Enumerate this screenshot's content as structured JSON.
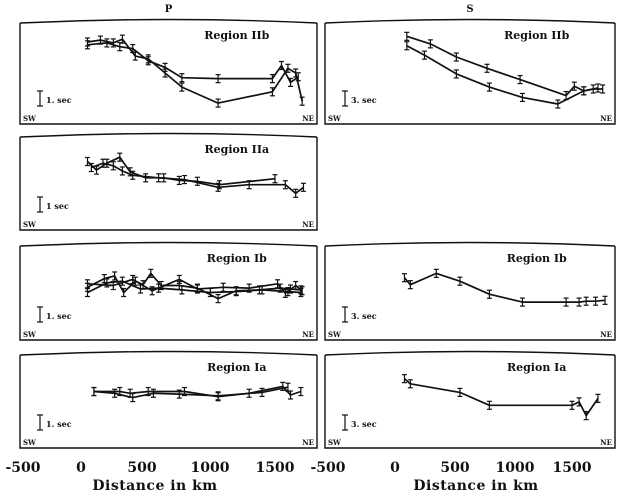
{
  "chart_data": {
    "type": "line",
    "columns": [
      {
        "title": "P",
        "xlabel": "Distance in km",
        "xlim": [
          -500,
          1850
        ],
        "xticks": [
          "-500",
          "0",
          "500",
          "1000",
          "1500"
        ],
        "panels": [
          {
            "region": "Region IIb",
            "scale_label": "1. sec",
            "left_label": "SW",
            "right_label": "NE",
            "ylim": [
              0,
              10
            ],
            "series": [
              {
                "x": [
                  50,
                  150,
                  250,
                  320,
                  420,
                  520,
                  650,
                  780,
                  1060,
                  1480,
                  1600,
                  1660,
                  1710
                ],
                "y": [
                  8.3,
                  8.5,
                  8.2,
                  8.6,
                  6.8,
                  6.5,
                  5.0,
                  3.5,
                  1.8,
                  3.0,
                  5.5,
                  5.0,
                  2.0
                ]
              },
              {
                "x": [
                  50,
                  200,
                  300,
                  400,
                  520,
                  650,
                  780,
                  1060,
                  1480,
                  1550,
                  1620,
                  1680
                ],
                "y": [
                  8.0,
                  8.2,
                  7.8,
                  7.6,
                  6.3,
                  5.6,
                  4.5,
                  4.4,
                  4.4,
                  5.8,
                  4.0,
                  4.6
                ]
              }
            ]
          },
          {
            "region": "Region IIa",
            "scale_label": "1 sec",
            "left_label": "SW",
            "right_label": "NE",
            "ylim": [
              0,
              10
            ],
            "series": [
              {
                "x": [
                  50,
                  120,
                  200,
                  300,
                  380,
                  500,
                  640,
                  760,
                  900,
                  1070,
                  1500
                ],
                "y": [
                  7.5,
                  6.5,
                  7.3,
                  8.0,
                  6.3,
                  5.6,
                  5.6,
                  5.3,
                  5.2,
                  4.8,
                  5.5
                ]
              },
              {
                "x": [
                  80,
                  170,
                  250,
                  320,
                  400,
                  600,
                  800,
                  1060,
                  1300,
                  1580,
                  1660,
                  1720
                ],
                "y": [
                  6.8,
                  7.3,
                  7.0,
                  6.4,
                  5.9,
                  5.6,
                  5.4,
                  4.5,
                  4.8,
                  4.8,
                  3.8,
                  4.5
                ]
              }
            ]
          },
          {
            "region": "Region Ib",
            "scale_label": "1. sec",
            "left_label": "SW",
            "right_label": "NE",
            "ylim": [
              0,
              10
            ],
            "series": [
              {
                "x": [
                  50,
                  180,
                  260,
                  330,
                  420,
                  480,
                  540,
                  620,
                  760,
                  900,
                  1060,
                  1200,
                  1380,
                  1540,
                  1620,
                  1700
                ],
                "y": [
                  5.6,
                  6.6,
                  6.9,
                  5.0,
                  6.3,
                  5.9,
                  7.2,
                  5.8,
                  5.8,
                  5.5,
                  4.3,
                  5.2,
                  5.3,
                  5.5,
                  5.4,
                  5.3
                ]
              },
              {
                "x": [
                  50,
                  200,
                  320,
                  460,
                  600,
                  780,
                  1000,
                  1200,
                  1400,
                  1600,
                  1700
                ],
                "y": [
                  5.0,
                  6.1,
                  6.3,
                  5.4,
                  5.5,
                  5.3,
                  5.0,
                  5.1,
                  5.3,
                  5.1,
                  5.0
                ]
              },
              {
                "x": [
                  50,
                  250,
                  400,
                  550,
                  760,
                  900,
                  1100,
                  1300,
                  1520,
                  1580,
                  1660,
                  1710
                ],
                "y": [
                  6.0,
                  5.8,
                  6.5,
                  5.2,
                  6.5,
                  5.4,
                  5.6,
                  5.5,
                  6.0,
                  4.9,
                  5.8,
                  5.2
                ]
              }
            ]
          },
          {
            "region": "Region Ia",
            "scale_label": "1. sec",
            "left_label": "SW",
            "right_label": "NE",
            "ylim": [
              0,
              10
            ],
            "series": [
              {
                "x": [
                  100,
                  300,
                  380,
                  520,
                  800,
                  1060,
                  1300,
                  1560,
                  1620,
                  1700
                ],
                "y": [
                  6.1,
                  6.1,
                  5.9,
                  6.1,
                  6.1,
                  5.5,
                  5.9,
                  6.7,
                  5.7,
                  6.1
                ]
              },
              {
                "x": [
                  100,
                  260,
                  400,
                  560,
                  760,
                  1060,
                  1400,
                  1600
                ],
                "y": [
                  6.1,
                  5.9,
                  5.4,
                  5.9,
                  5.8,
                  5.6,
                  6.0,
                  6.6
                ]
              }
            ]
          }
        ]
      },
      {
        "title": "S",
        "xlabel": "Distance in km",
        "xlim": [
          -500,
          1850
        ],
        "xticks": [
          "-500",
          "0",
          "500",
          "1000",
          "1500"
        ],
        "panels": [
          {
            "region": "Region IIb",
            "scale_label": "3. sec",
            "left_label": "SW",
            "right_label": "NE",
            "ylim": [
              0,
              10
            ],
            "series": [
              {
                "x": [
                  100,
                  300,
                  520,
                  780,
                  1060,
                  1450,
                  1520,
                  1600,
                  1720
                ],
                "y": [
                  8.9,
                  8.1,
                  6.7,
                  5.5,
                  4.3,
                  2.6,
                  3.6,
                  3.1,
                  3.4
                ]
              },
              {
                "x": [
                  100,
                  250,
                  520,
                  800,
                  1080,
                  1380,
                  1600,
                  1680,
                  1760
                ],
                "y": [
                  7.9,
                  6.9,
                  4.9,
                  3.5,
                  2.4,
                  1.7,
                  3.1,
                  3.3,
                  3.3
                ]
              }
            ]
          },
          {
            "region": "Region Ib",
            "scale_label": "3. sec",
            "left_label": "SW",
            "right_label": "NE",
            "ylim": [
              0,
              10
            ],
            "series": [
              {
                "x": [
                  80,
                  130,
                  350,
                  550,
                  800,
                  1080,
                  1450,
                  1560,
                  1620,
                  1700,
                  1780
                ],
                "y": [
                  6.7,
                  5.9,
                  7.2,
                  6.3,
                  4.8,
                  3.9,
                  3.9,
                  3.9,
                  4.0,
                  4.0,
                  4.1
                ]
              }
            ]
          },
          {
            "region": "Region Ia",
            "scale_label": "3. sec",
            "left_label": "SW",
            "right_label": "NE",
            "ylim": [
              0,
              10
            ],
            "series": [
              {
                "x": [
                  80,
                  130,
                  550,
                  800,
                  1500,
                  1560,
                  1620,
                  1720
                ],
                "y": [
                  7.6,
                  7.0,
                  6.0,
                  4.5,
                  4.5,
                  4.9,
                  3.3,
                  5.3
                ]
              }
            ]
          }
        ]
      }
    ]
  }
}
